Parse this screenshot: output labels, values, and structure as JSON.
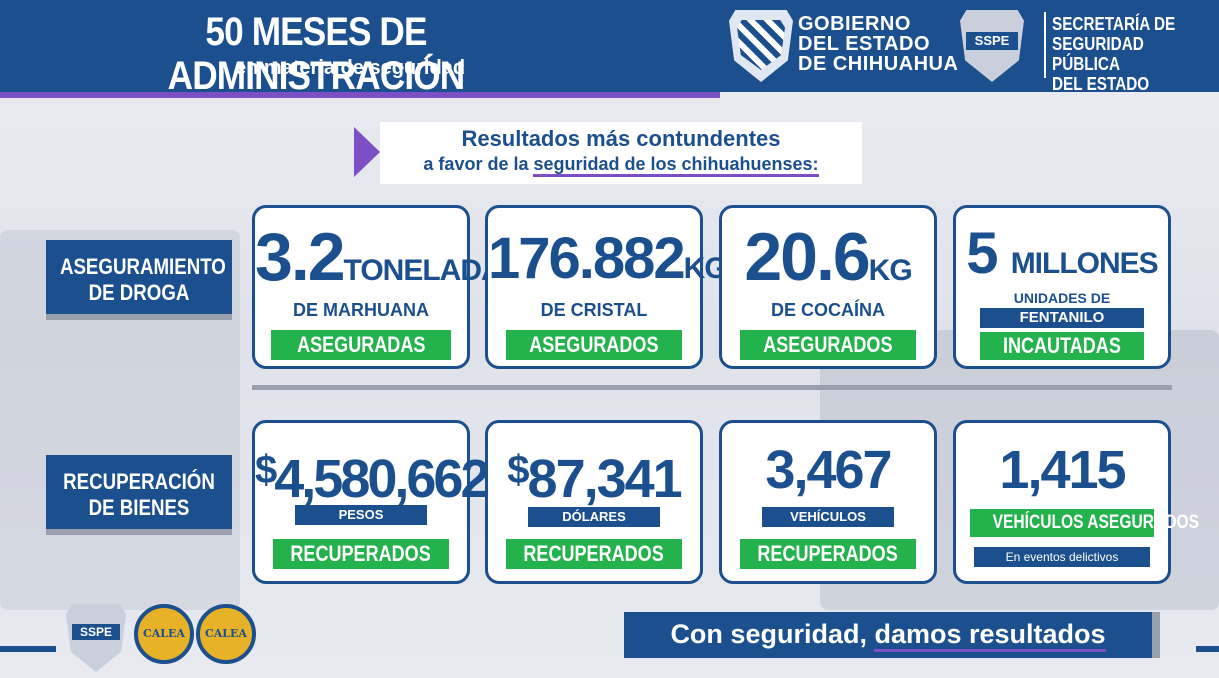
{
  "header": {
    "title": "50 MESES DE ADMINISTRACIÓN",
    "subtitle": "en materia de seguridad",
    "gob_line1": "GOBIERNO",
    "gob_line2": "DEL ESTADO",
    "gob_line3": "DE CHIHUAHUA",
    "sspe_badge": "SSPE",
    "sec_line1": "SECRETARÍA DE",
    "sec_line2": "SEGURIDAD PÚBLICA",
    "sec_line3": "DEL ESTADO"
  },
  "headline": {
    "line1": "Resultados más contundentes",
    "line2_pre": "a favor de la ",
    "line2_ul": "seguridad de los chihuahuenses:"
  },
  "sections": {
    "droga_1": "ASEGURAMIENTO",
    "droga_2": "DE DROGA",
    "bienes_1": "RECUPERACIÓN",
    "bienes_2": "DE BIENES"
  },
  "droga": [
    {
      "value": "3.2",
      "unit": "TONELADAS",
      "item": "DE MARHUANA",
      "status": "ASEGURADAS"
    },
    {
      "value": "176.882",
      "unit": "KG",
      "item": "DE CRISTAL",
      "status": "ASEGURADOS"
    },
    {
      "value": "20.6",
      "unit": "KG",
      "item": "DE COCAÍNA",
      "status": "ASEGURADOS"
    },
    {
      "value": "5",
      "unit": "MILLONES",
      "item": "UNIDADES DE",
      "item2": "FENTANILO",
      "status": "INCAUTADAS"
    }
  ],
  "bienes": [
    {
      "currency": "$",
      "value": "4,580,662",
      "item": "PESOS",
      "status": "RECUPERADOS"
    },
    {
      "currency": "$",
      "value": "87,341",
      "item": "DÓLARES",
      "status": "RECUPERADOS"
    },
    {
      "value": "3,467",
      "item": "VEHÍCULOS",
      "status": "RECUPERADOS"
    },
    {
      "value": "1,415",
      "status": "VEHÍCULOS ASEGURADOS",
      "note": "En eventos delictivos"
    }
  ],
  "footer": {
    "sspe_badge": "SSPE",
    "calea_1": "CALEA",
    "calea_2": "CALEA",
    "slogan_pre": "Con seguridad, ",
    "slogan_ul": "damos resultados"
  },
  "colors": {
    "navy": "#1b4f8e",
    "green": "#23b24b",
    "purple": "#7d4fc4"
  }
}
